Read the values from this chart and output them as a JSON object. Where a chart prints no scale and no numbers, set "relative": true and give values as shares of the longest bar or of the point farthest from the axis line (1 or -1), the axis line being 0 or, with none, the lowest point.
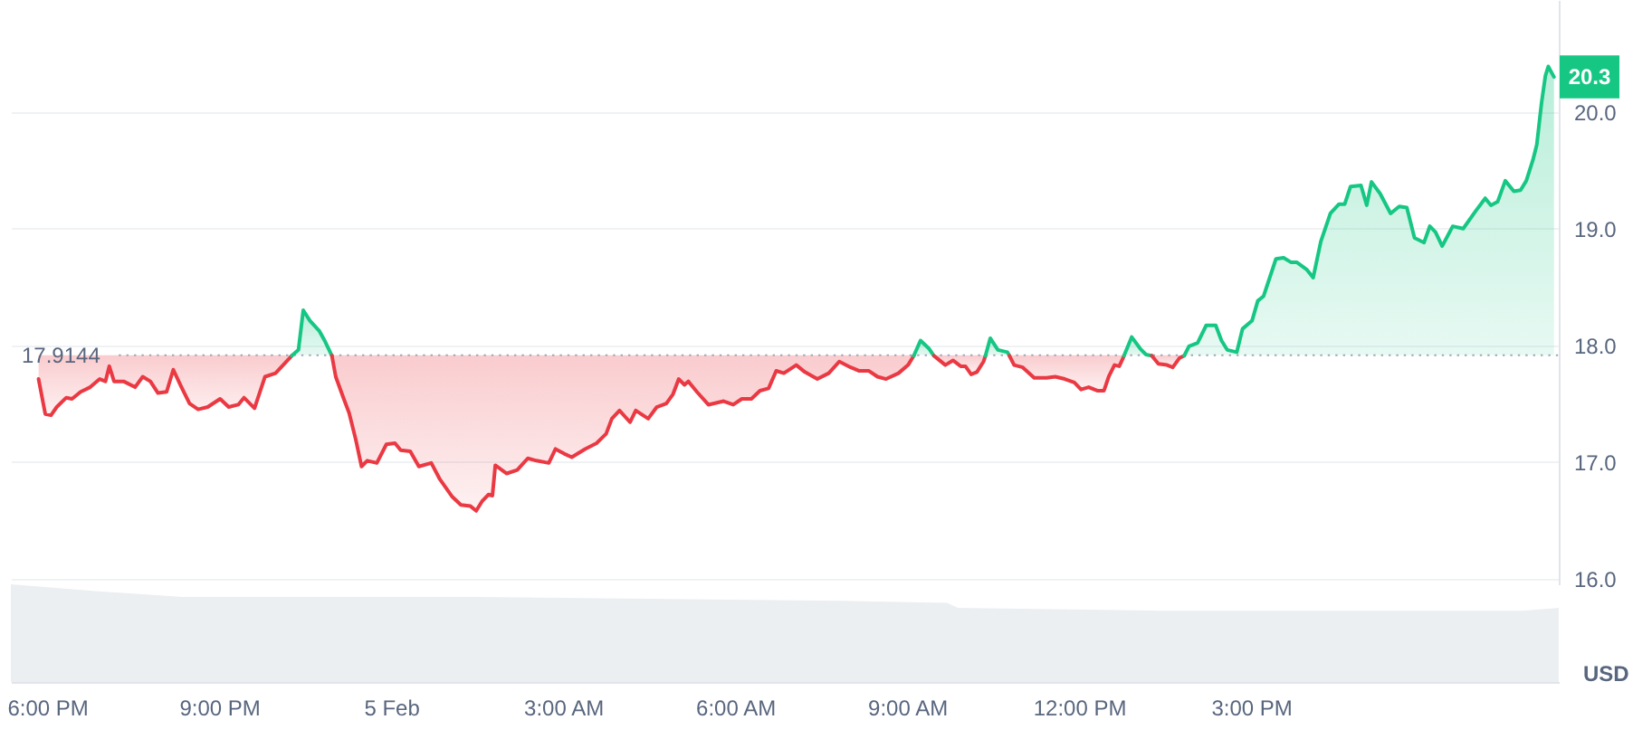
{
  "chart_data": [
    {
      "type": "line",
      "ylabel": "USD",
      "line_style": "solid",
      "xlim": [
        "--02-04T17:22",
        "--02-05T20:22"
      ],
      "ylim": [
        15.95,
        20.96
      ],
      "yticks": [
        {
          "value": 16,
          "label": "16.0"
        },
        {
          "value": 17,
          "label": "17.0"
        },
        {
          "value": 18,
          "label": "18.0"
        },
        {
          "value": 19,
          "label": "19.0"
        },
        {
          "value": 20,
          "label": "20.0"
        }
      ],
      "grid": "y",
      "tick_labels": "y",
      "ref_lines": [
        {
          "axis": "y",
          "value": 17.9144,
          "label": "17.9144",
          "color": "#a1a7bb",
          "line_style": "dotted"
        }
      ],
      "series": [
        {
          "type": "line",
          "color": "#ea3943",
          "x": [
            "--02-04T17:51",
            "--02-04T17:58",
            "--02-04T18:04",
            "--02-04T18:10",
            "--02-04T18:20",
            "--02-04T18:26",
            "--02-04T18:35",
            "--02-04T18:45",
            "--02-04T18:55",
            "--02-04T19:01",
            "--02-04T19:05",
            "--02-04T19:10",
            "--02-04T19:20",
            "--02-04T19:32",
            "--02-04T19:40",
            "--02-04T19:48",
            "--02-04T19:56",
            "--02-04T20:05",
            "--02-04T20:12",
            "--02-04T20:20",
            "--02-04T20:29",
            "--02-04T20:38",
            "--02-04T20:48",
            "--02-04T21:01",
            "--02-04T21:10",
            "--02-04T21:20",
            "--02-04T21:26",
            "--02-04T21:37",
            "--02-04T21:48",
            "--02-04T21:59",
            "--02-04T22:16"
          ],
          "values": [
            17.71,
            17.41,
            17.4,
            17.47,
            17.55,
            17.54,
            17.6,
            17.64,
            17.71,
            17.69,
            17.82,
            17.69,
            17.69,
            17.64,
            17.73,
            17.69,
            17.59,
            17.6,
            17.79,
            17.65,
            17.5,
            17.45,
            17.47,
            17.54,
            17.47,
            17.49,
            17.55,
            17.46,
            17.73,
            17.76,
            17.91
          ],
          "lower": [
            17.71,
            17.41,
            17.4,
            17.47,
            17.55,
            17.54,
            17.6,
            17.64,
            17.71,
            17.69,
            17.82,
            17.69,
            17.69,
            17.64,
            17.73,
            17.69,
            17.59,
            17.6,
            17.79,
            17.65,
            17.5,
            17.45,
            17.47,
            17.54,
            17.47,
            17.49,
            17.55,
            17.46,
            17.73,
            17.76,
            17.91
          ],
          "upper": [
            17.9144,
            17.9144,
            17.9144,
            17.9144,
            17.9144,
            17.9144,
            17.9144,
            17.9144,
            17.9144,
            17.9144,
            17.9144,
            17.9144,
            17.9144,
            17.9144,
            17.9144,
            17.9144,
            17.9144,
            17.9144,
            17.9144,
            17.9144,
            17.9144,
            17.9144,
            17.9144,
            17.9144,
            17.9144,
            17.9144,
            17.9144,
            17.9144,
            17.9144,
            17.9144,
            17.9144
          ]
        },
        {
          "type": "area",
          "color": "#16c784",
          "x": [
            "--02-04T22:16",
            "--02-04T22:23",
            "--02-04T22:28",
            "--02-04T22:35",
            "--02-04T22:45",
            "--02-04T22:51",
            "--02-04T22:58"
          ],
          "values": [
            17.91,
            17.96,
            18.3,
            18.21,
            18.12,
            18.03,
            17.91
          ]
        },
        {
          "type": "line",
          "color": "#ea3943",
          "x": [
            "--02-04T22:58",
            "--02-04T23:02",
            "--02-04T23:10",
            "--02-04T23:16",
            "--02-04T23:23",
            "--02-04T23:29",
            "--02-04T23:35",
            "--02-04T23:45",
            "--02-04T23:55",
            "--02-05T00:04",
            "--02-05T00:10",
            "--02-05T00:20",
            "--02-05T00:29",
            "--02-05T00:42",
            "--02-05T00:51",
            "--02-05T01:04",
            "--02-05T01:13",
            "--02-05T01:23",
            "--02-05T01:29",
            "--02-05T01:35",
            "--02-05T01:42",
            "--02-05T01:46",
            "--02-05T01:49",
            "--02-05T02:01",
            "--02-05T02:12",
            "--02-05T02:23",
            "--02-05T02:32",
            "--02-05T02:45",
            "--02-05T02:52",
            "--02-05T03:01",
            "--02-05T03:09",
            "--02-05T03:23",
            "--02-05T03:35",
            "--02-05T03:45",
            "--02-05T03:51",
            "--02-05T03:59",
            "--02-05T04:10",
            "--02-05T04:16",
            "--02-05T04:29",
            "--02-05T04:38",
            "--02-05T04:48",
            "--02-05T04:55",
            "--02-05T05:01",
            "--02-05T05:07",
            "--02-05T05:11",
            "--02-05T05:20",
            "--02-05T05:32",
            "--02-05T05:48",
            "--02-05T05:58",
            "--02-05T06:07",
            "--02-05T06:17",
            "--02-05T06:26",
            "--02-05T06:35",
            "--02-05T06:43",
            "--02-05T06:51",
            "--02-05T07:04",
            "--02-05T07:13",
            "--02-05T07:26",
            "--02-05T07:38",
            "--02-05T07:49",
            "--02-05T08:01",
            "--02-05T08:10",
            "--02-05T08:20",
            "--02-05T08:29",
            "--02-05T08:38",
            "--02-05T08:51",
            "--02-05T09:01",
            "--02-05T09:07"
          ],
          "values": [
            17.91,
            17.73,
            17.55,
            17.42,
            17.19,
            16.96,
            17.01,
            16.99,
            17.15,
            17.16,
            17.1,
            17.09,
            16.96,
            16.99,
            16.85,
            16.7,
            16.63,
            16.62,
            16.58,
            16.66,
            16.72,
            16.71,
            16.97,
            16.9,
            16.93,
            17.03,
            17.01,
            16.99,
            17.11,
            17.07,
            17.04,
            17.11,
            17.16,
            17.24,
            17.37,
            17.44,
            17.34,
            17.44,
            17.37,
            17.47,
            17.5,
            17.58,
            17.71,
            17.66,
            17.69,
            17.6,
            17.49,
            17.52,
            17.49,
            17.54,
            17.54,
            17.61,
            17.63,
            17.78,
            17.76,
            17.83,
            17.77,
            17.71,
            17.76,
            17.86,
            17.81,
            17.78,
            17.78,
            17.73,
            17.71,
            17.76,
            17.83,
            17.91
          ],
          "lower": [
            17.91,
            17.73,
            17.55,
            17.42,
            17.19,
            16.96,
            17.01,
            16.99,
            17.15,
            17.16,
            17.1,
            17.09,
            16.96,
            16.99,
            16.85,
            16.7,
            16.63,
            16.62,
            16.58,
            16.66,
            16.72,
            16.71,
            16.97,
            16.9,
            16.93,
            17.03,
            17.01,
            16.99,
            17.11,
            17.07,
            17.04,
            17.11,
            17.16,
            17.24,
            17.37,
            17.44,
            17.34,
            17.44,
            17.37,
            17.47,
            17.5,
            17.58,
            17.71,
            17.66,
            17.69,
            17.6,
            17.49,
            17.52,
            17.49,
            17.54,
            17.54,
            17.61,
            17.63,
            17.78,
            17.76,
            17.83,
            17.77,
            17.71,
            17.76,
            17.86,
            17.81,
            17.78,
            17.78,
            17.73,
            17.71,
            17.76,
            17.83,
            17.91
          ],
          "upper": [
            17.9144,
            17.9144,
            17.9144,
            17.9144,
            17.9144,
            17.9144,
            17.9144,
            17.9144,
            17.9144,
            17.9144,
            17.9144,
            17.9144,
            17.9144,
            17.9144,
            17.9144,
            17.9144,
            17.9144,
            17.9144,
            17.9144,
            17.9144,
            17.9144,
            17.9144,
            17.9144,
            17.9144,
            17.9144,
            17.9144,
            17.9144,
            17.9144,
            17.9144,
            17.9144,
            17.9144,
            17.9144,
            17.9144,
            17.9144,
            17.9144,
            17.9144,
            17.9144,
            17.9144,
            17.9144,
            17.9144,
            17.9144,
            17.9144,
            17.9144,
            17.9144,
            17.9144,
            17.9144,
            17.9144,
            17.9144,
            17.9144,
            17.9144,
            17.9144,
            17.9144,
            17.9144,
            17.9144,
            17.9144,
            17.9144,
            17.9144,
            17.9144,
            17.9144,
            17.9144,
            17.9144,
            17.9144,
            17.9144,
            17.9144,
            17.9144,
            17.9144,
            17.9144,
            17.9144
          ]
        },
        {
          "type": "area",
          "color": "#16c784",
          "x": [
            "--02-05T09:07",
            "--02-05T09:14",
            "--02-05T09:23",
            "--02-05T09:28"
          ],
          "values": [
            17.91,
            18.04,
            17.97,
            17.91
          ]
        },
        {
          "type": "line",
          "color": "#ea3943",
          "x": [
            "--02-05T09:28",
            "--02-05T09:31",
            "--02-05T09:40",
            "--02-05T09:48",
            "--02-05T09:56",
            "--02-05T10:01",
            "--02-05T10:07",
            "--02-05T10:13",
            "--02-05T10:20",
            "--02-05T10:22"
          ],
          "values": [
            17.91,
            17.89,
            17.83,
            17.87,
            17.82,
            17.82,
            17.75,
            17.77,
            17.86,
            17.91
          ],
          "lower": [
            17.91,
            17.89,
            17.83,
            17.87,
            17.82,
            17.82,
            17.75,
            17.77,
            17.86,
            17.91
          ],
          "upper": [
            17.9144,
            17.9144,
            17.9144,
            17.9144,
            17.9144,
            17.9144,
            17.9144,
            17.9144,
            17.9144,
            17.9144
          ]
        },
        {
          "type": "area",
          "color": "#16c784",
          "x": [
            "--02-05T10:22",
            "--02-05T10:27",
            "--02-05T10:35",
            "--02-05T10:45",
            "--02-05T10:47"
          ],
          "values": [
            17.91,
            18.06,
            17.96,
            17.94,
            17.91
          ]
        },
        {
          "type": "line",
          "color": "#ea3943",
          "x": [
            "--02-05T10:47",
            "--02-05T10:52",
            "--02-05T11:01",
            "--02-05T11:13",
            "--02-05T11:26",
            "--02-05T11:35",
            "--02-05T11:45",
            "--02-05T11:55",
            "--02-05T12:02",
            "--02-05T12:10",
            "--02-05T12:19",
            "--02-05T12:26",
            "--02-05T12:31",
            "--02-05T12:37",
            "--02-05T12:42",
            "--02-05T12:46",
            "--02-05T12:47"
          ],
          "values": [
            17.91,
            17.83,
            17.81,
            17.72,
            17.72,
            17.73,
            17.71,
            17.68,
            17.62,
            17.64,
            17.61,
            17.61,
            17.73,
            17.83,
            17.82,
            17.89,
            17.91
          ],
          "lower": [
            17.91,
            17.83,
            17.81,
            17.72,
            17.72,
            17.73,
            17.71,
            17.68,
            17.62,
            17.64,
            17.61,
            17.61,
            17.73,
            17.83,
            17.82,
            17.89,
            17.91
          ],
          "upper": [
            17.9144,
            17.9144,
            17.9144,
            17.9144,
            17.9144,
            17.9144,
            17.9144,
            17.9144,
            17.9144,
            17.9144,
            17.9144,
            17.9144,
            17.9144,
            17.9144,
            17.9144,
            17.9144,
            17.9144
          ]
        },
        {
          "type": "area",
          "color": "#16c784",
          "x": [
            "--02-05T12:47",
            "--02-05T12:55",
            "--02-05T13:04",
            "--02-05T13:10",
            "--02-05T13:16"
          ],
          "values": [
            17.91,
            18.07,
            17.97,
            17.92,
            17.91
          ]
        },
        {
          "type": "line",
          "color": "#ea3943",
          "x": [
            "--02-05T13:16",
            "--02-05T13:23",
            "--02-05T13:32",
            "--02-05T13:38",
            "--02-05T13:45",
            "--02-05T13:50"
          ],
          "values": [
            17.91,
            17.84,
            17.83,
            17.81,
            17.89,
            17.91
          ],
          "lower": [
            17.91,
            17.84,
            17.83,
            17.81,
            17.89,
            17.91
          ],
          "upper": [
            17.9144,
            17.9144,
            17.9144,
            17.9144,
            17.9144,
            17.9144
          ]
        },
        {
          "type": "area",
          "color": "#16c784",
          "x": [
            "--02-05T13:50",
            "--02-05T13:55",
            "--02-05T14:04",
            "--02-05T14:13",
            "--02-05T14:23",
            "--02-05T14:29",
            "--02-05T14:35",
            "--02-05T14:45",
            "--02-05T14:51",
            "--02-05T15:01",
            "--02-05T15:07",
            "--02-05T15:13",
            "--02-05T15:26",
            "--02-05T15:34",
            "--02-05T15:42",
            "--02-05T15:48",
            "--02-05T15:58",
            "--02-05T16:05",
            "--02-05T16:13",
            "--02-05T16:23",
            "--02-05T16:32",
            "--02-05T16:38",
            "--02-05T16:44",
            "--02-05T16:55",
            "--02-05T17:01",
            "--02-05T17:06",
            "--02-05T17:15",
            "--02-05T17:26",
            "--02-05T17:35",
            "--02-05T17:43",
            "--02-05T17:51",
            "--02-05T18:01",
            "--02-05T18:07",
            "--02-05T18:13",
            "--02-05T18:20",
            "--02-05T18:31",
            "--02-05T18:42",
            "--02-05T18:55",
            "--02-05T19:05",
            "--02-05T19:11",
            "--02-05T19:18",
            "--02-05T19:26",
            "--02-05T19:35",
            "--02-05T19:42",
            "--02-05T19:48",
            "--02-05T19:55",
            "--02-05T19:59",
            "--02-05T20:04",
            "--02-05T20:08",
            "--02-05T20:11",
            "--02-05T20:17"
          ],
          "values": [
            17.91,
            17.99,
            18.02,
            18.17,
            18.17,
            18.04,
            17.96,
            17.94,
            18.14,
            18.21,
            18.38,
            18.42,
            18.74,
            18.75,
            18.71,
            18.71,
            18.65,
            18.58,
            18.89,
            19.13,
            19.21,
            19.21,
            19.36,
            19.37,
            19.2,
            19.4,
            19.3,
            19.13,
            19.19,
            19.18,
            18.92,
            18.88,
            19.02,
            18.97,
            18.85,
            19.02,
            19.0,
            19.15,
            19.26,
            19.2,
            19.23,
            19.41,
            19.32,
            19.33,
            19.41,
            19.59,
            19.72,
            20.08,
            20.31,
            20.39,
            20.3
          ],
          "value_labels": [
            null,
            null,
            null,
            null,
            null,
            null,
            null,
            null,
            null,
            null,
            null,
            null,
            null,
            null,
            null,
            null,
            null,
            null,
            null,
            null,
            null,
            null,
            null,
            null,
            null,
            null,
            null,
            null,
            null,
            null,
            null,
            null,
            null,
            null,
            null,
            null,
            null,
            null,
            null,
            null,
            null,
            null,
            null,
            null,
            null,
            null,
            null,
            null,
            null,
            null,
            "20.3"
          ]
        }
      ]
    },
    {
      "type": "area",
      "relative": true,
      "color": "#eceff2",
      "tick_labels": "x",
      "xlim": [
        "--02-04T17:22",
        "--02-05T20:22"
      ],
      "xticks": [
        {
          "value": "--02-04T18:00",
          "label": "6:00 PM"
        },
        {
          "value": "--02-04T21:00",
          "label": "9:00 PM"
        },
        {
          "value": "--02-05T00:00",
          "label": "5 Feb"
        },
        {
          "value": "--02-05T03:00",
          "label": "3:00 AM"
        },
        {
          "value": "--02-05T06:00",
          "label": "6:00 AM"
        },
        {
          "value": "--02-05T09:00",
          "label": "9:00 AM"
        },
        {
          "value": "--02-05T12:00",
          "label": "12:00 PM"
        },
        {
          "value": "--02-05T15:00",
          "label": "3:00 PM"
        }
      ],
      "x": [
        "--02-04T17:22",
        "--02-04T18:51",
        "--02-04T20:22",
        "--02-05T01:29",
        "--02-05T07:52",
        "--02-05T09:42",
        "--02-05T09:53",
        "--02-05T13:22",
        "--02-05T19:44",
        "--02-05T20:22"
      ],
      "values": [
        1,
        0.93,
        0.87,
        0.87,
        0.83,
        0.81,
        0.76,
        0.73,
        0.73,
        0.76
      ]
    }
  ]
}
